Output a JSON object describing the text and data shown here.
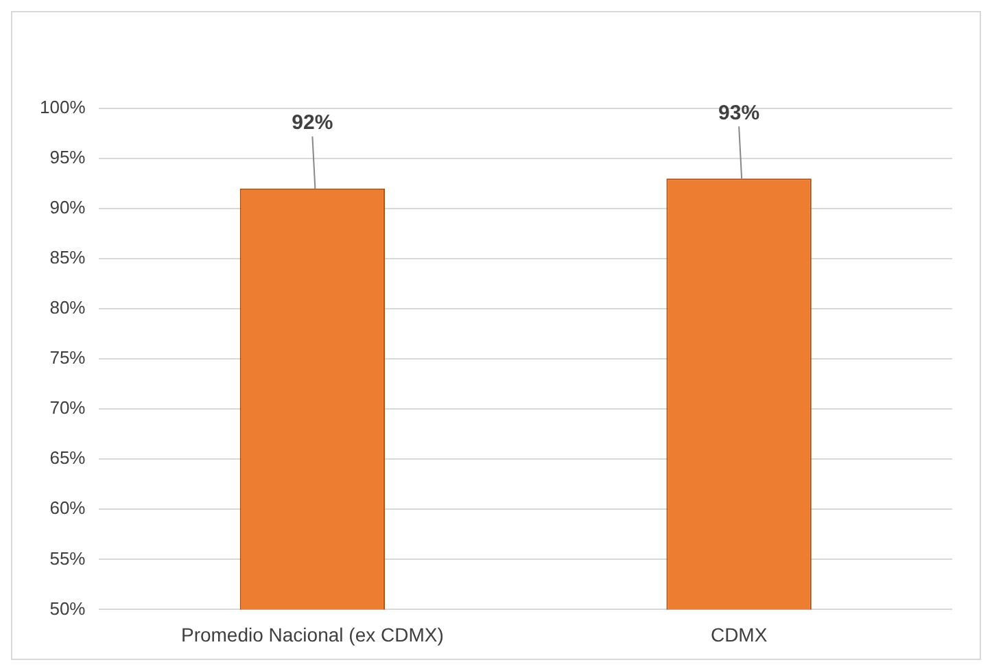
{
  "chart_data": {
    "type": "bar",
    "categories": [
      "Promedio Nacional (ex CDMX)",
      "CDMX"
    ],
    "values": [
      92,
      93
    ],
    "color": "#ed7d31",
    "value_labels": [
      "92%",
      "93%"
    ],
    "ylim": [
      50,
      100
    ],
    "yticks": [
      {
        "value": 50,
        "label": "50%"
      },
      {
        "value": 55,
        "label": "55%"
      },
      {
        "value": 60,
        "label": "60%"
      },
      {
        "value": 65,
        "label": "65%"
      },
      {
        "value": 70,
        "label": "70%"
      },
      {
        "value": 75,
        "label": "75%"
      },
      {
        "value": 80,
        "label": "80%"
      },
      {
        "value": 85,
        "label": "85%"
      },
      {
        "value": 90,
        "label": "90%"
      },
      {
        "value": 95,
        "label": "95%"
      },
      {
        "value": 100,
        "label": "100%"
      }
    ],
    "grid": "y",
    "legend": false
  }
}
